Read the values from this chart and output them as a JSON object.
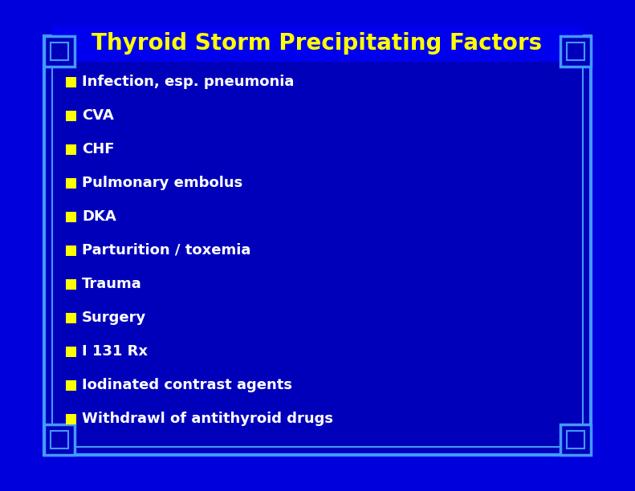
{
  "title": "Thyroid Storm Precipitating Factors",
  "title_color": "#FFFF00",
  "title_fontsize": 20,
  "bullet_items": [
    "Infection, esp. pneumonia",
    "CVA",
    "CHF",
    "Pulmonary embolus",
    "DKA",
    "Parturition / toxemia",
    "Trauma",
    "Surgery",
    "I 131 Rx",
    "Iodinated contrast agents",
    "Withdrawl of antithyroid drugs"
  ],
  "bullet_text_color": "#FFFFFF",
  "bullet_fontsize": 13,
  "bullet_square_color": "#FFFF00",
  "bg_color": "#0000CC",
  "inner_bg_color": "#0000BB",
  "border_color": "#4499FF",
  "fig_bg_color": "#0000DD"
}
